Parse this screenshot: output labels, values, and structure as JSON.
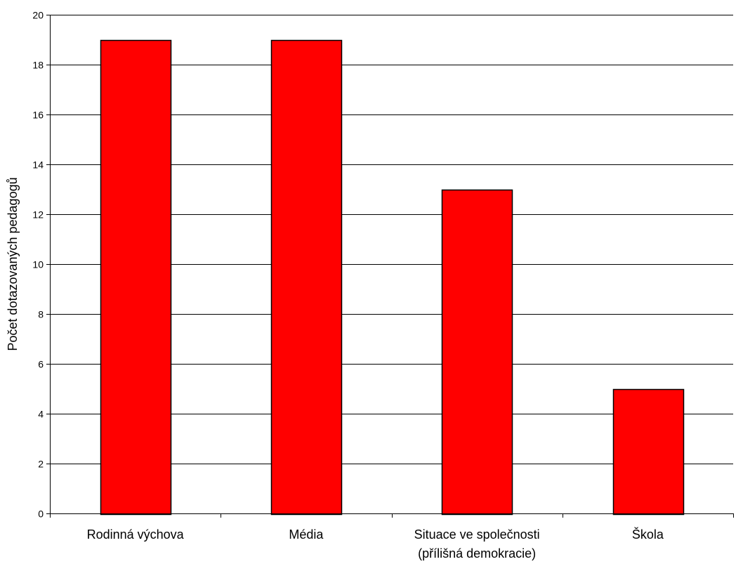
{
  "chart_data": {
    "type": "bar",
    "title": "",
    "xlabel": "",
    "ylabel": "Počet dotazovaných pedagogů",
    "categories": [
      [
        "Rodinná výchova"
      ],
      [
        "Média"
      ],
      [
        "Situace ve společnosti",
        "(přílišná demokracie)"
      ],
      [
        "Škola"
      ]
    ],
    "values": [
      19,
      19,
      13,
      5
    ],
    "ylim": [
      0,
      20
    ],
    "yticks": [
      0,
      2,
      4,
      6,
      8,
      10,
      12,
      14,
      16,
      18,
      20
    ],
    "grid": true,
    "legend": "none",
    "bar_color": "#ff0000",
    "bar_border_color": "#000000",
    "gridline_color": "#000000"
  }
}
